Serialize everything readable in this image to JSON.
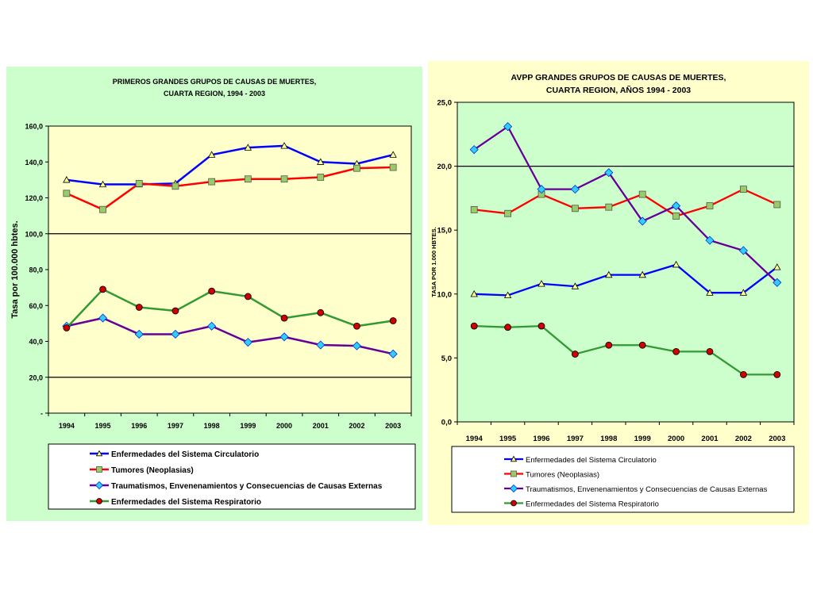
{
  "chart_data": [
    {
      "type": "line",
      "title_lines": [
        "PRIMEROS GRANDES GRUPOS DE CAUSAS DE MUERTES,",
        "CUARTA REGION, 1994 - 2003"
      ],
      "ylabel": "Tasa por 100.000 hbtes.",
      "xlabel": "",
      "categories": [
        "1994",
        "1995",
        "1996",
        "1997",
        "1998",
        "1999",
        "2000",
        "2001",
        "2002",
        "2003"
      ],
      "ylim": [
        0,
        160
      ],
      "yticks": [
        0,
        20,
        40,
        60,
        80,
        100,
        120,
        140,
        160
      ],
      "ytick_labels": [
        "-",
        "20,0",
        "40,0",
        "60,0",
        "80,0",
        "100,0",
        "120,0",
        "140,0",
        "160,0"
      ],
      "gridlines": [
        20,
        100
      ],
      "plot_bg": "#ffffcc",
      "panel_bg": "#ccffcc",
      "legend_position": "bottom",
      "series": [
        {
          "name": "Enfermedades del Sistema Circulatorio",
          "color": "#0000ff",
          "marker": "triangle",
          "marker_color": "#ffff99",
          "values": [
            130,
            127.5,
            127.5,
            128,
            144,
            148,
            149,
            140,
            139,
            144
          ]
        },
        {
          "name": "Tumores (Neoplasias)",
          "color": "#ff0000",
          "marker": "square",
          "marker_color": "#99cc66",
          "values": [
            122.5,
            113.5,
            128,
            126.5,
            129,
            130.5,
            130.5,
            131.5,
            136.5,
            137
          ]
        },
        {
          "name": "Traumatismos, Envenenamientos y Consecuencias de Causas Externas",
          "color": "#660099",
          "marker": "diamond",
          "marker_color": "#33ccff",
          "values": [
            48.5,
            53,
            44,
            44,
            48.5,
            39.5,
            42.5,
            38,
            37.5,
            33
          ]
        },
        {
          "name": "Enfermedades del Sistema Respiratorio",
          "color": "#339933",
          "marker": "circle",
          "marker_color": "#cc0000",
          "values": [
            47.5,
            69,
            59,
            57,
            68,
            65,
            53,
            56,
            48.5,
            51.5
          ]
        }
      ]
    },
    {
      "type": "line",
      "title_lines": [
        "AVPP GRANDES GRUPOS DE CAUSAS DE MUERTES,",
        "CUARTA REGION, AÑOS 1994 - 2003"
      ],
      "ylabel": "TASA POR 1.000 HBTES.",
      "xlabel": "",
      "categories": [
        "1994",
        "1995",
        "1996",
        "1997",
        "1998",
        "1999",
        "2000",
        "2001",
        "2002",
        "2003"
      ],
      "ylim": [
        0,
        25
      ],
      "yticks": [
        0,
        5,
        10,
        15,
        20,
        25
      ],
      "ytick_labels": [
        "0,0",
        "5,0",
        "10,0",
        "15,0",
        "20,0",
        "25,0"
      ],
      "gridlines": [
        20
      ],
      "plot_bg": "#ccffcc",
      "panel_bg": "#ffffcc",
      "legend_position": "bottom",
      "series": [
        {
          "name": "Enfermedades del Sistema Circulatorio",
          "color": "#0000ff",
          "marker": "triangle",
          "marker_color": "#ffff99",
          "values": [
            10,
            9.9,
            10.8,
            10.6,
            11.5,
            11.5,
            12.3,
            10.1,
            10.1,
            12.1
          ]
        },
        {
          "name": "Tumores (Neoplasias)",
          "color": "#ff0000",
          "marker": "square",
          "marker_color": "#99cc66",
          "values": [
            16.6,
            16.3,
            17.8,
            16.7,
            16.8,
            17.8,
            16.1,
            16.9,
            18.2,
            17
          ]
        },
        {
          "name": "Traumatismos, Envenenamientos y Consecuencias de Causas Externas",
          "color": "#660099",
          "marker": "diamond",
          "marker_color": "#33ccff",
          "values": [
            21.3,
            23.1,
            18.2,
            18.2,
            19.5,
            15.7,
            16.9,
            14.2,
            13.4,
            10.9
          ]
        },
        {
          "name": "Enfermedades del Sistema Respiratorio",
          "color": "#339933",
          "marker": "circle",
          "marker_color": "#cc0000",
          "values": [
            7.5,
            7.4,
            7.5,
            5.3,
            6,
            6,
            5.5,
            5.5,
            3.7,
            3.7
          ]
        }
      ]
    }
  ]
}
